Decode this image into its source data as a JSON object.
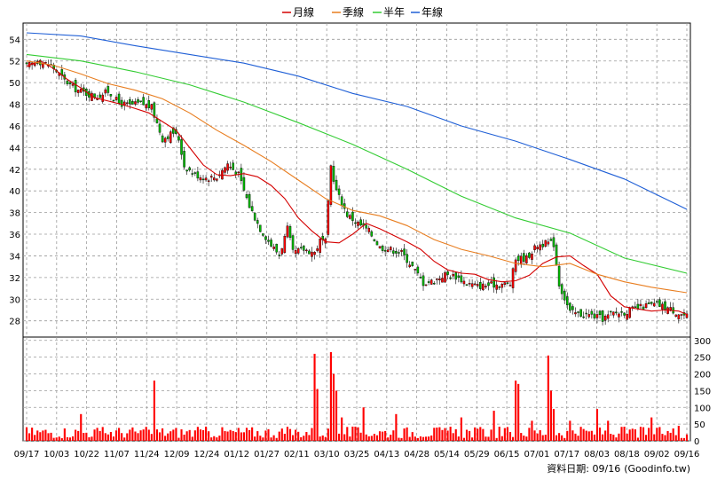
{
  "chart_data": {
    "type": "line",
    "legend": {
      "placement": "top-center",
      "items": [
        {
          "name": "月線",
          "color": "#d40000"
        },
        {
          "name": "季線",
          "color": "#e87d1f"
        },
        {
          "name": "半年",
          "color": "#33cc33"
        },
        {
          "name": "年線",
          "color": "#1f5fd6"
        }
      ]
    },
    "price_axis": {
      "ticks": [
        28,
        30,
        32,
        34,
        36,
        38,
        40,
        42,
        44,
        46,
        48,
        50,
        52,
        54
      ],
      "ylim": [
        26.5,
        55.5
      ],
      "side": "left"
    },
    "volume_axis": {
      "ticks": [
        0,
        50,
        100,
        150,
        200,
        250,
        300
      ],
      "ylim": [
        0,
        310
      ],
      "side": "right"
    },
    "x_ticks": [
      "09/17",
      "10/03",
      "10/22",
      "11/07",
      "11/24",
      "12/09",
      "12/24",
      "01/12",
      "01/27",
      "02/11",
      "03/10",
      "03/25",
      "04/13",
      "04/28",
      "05/14",
      "05/29",
      "06/15",
      "07/01",
      "07/17",
      "08/03",
      "08/18",
      "09/02",
      "09/16"
    ],
    "ma_series": [
      {
        "name": "月線",
        "color": "#d40000",
        "values": [
          [
            0,
            51.5
          ],
          [
            5,
            52
          ],
          [
            10,
            51.3
          ],
          [
            15,
            50.3
          ],
          [
            20,
            49.5
          ],
          [
            25,
            48.6
          ],
          [
            30,
            48.3
          ],
          [
            35,
            48.0
          ],
          [
            40,
            47.6
          ],
          [
            45,
            47.2
          ],
          [
            50,
            46.4
          ],
          [
            55,
            45.6
          ],
          [
            60,
            44.0
          ],
          [
            65,
            42.4
          ],
          [
            70,
            41.5
          ],
          [
            75,
            41.4
          ],
          [
            80,
            41.6
          ],
          [
            85,
            41.3
          ],
          [
            90,
            40.5
          ],
          [
            95,
            39.3
          ],
          [
            100,
            37.5
          ],
          [
            105,
            36.3
          ],
          [
            110,
            35.3
          ],
          [
            115,
            35.2
          ],
          [
            120,
            36.0
          ],
          [
            125,
            37.0
          ],
          [
            130,
            36.5
          ],
          [
            135,
            35.9
          ],
          [
            140,
            35.3
          ],
          [
            145,
            34.6
          ],
          [
            150,
            33.5
          ],
          [
            155,
            32.7
          ],
          [
            160,
            32.4
          ],
          [
            165,
            32.3
          ],
          [
            170,
            31.8
          ],
          [
            175,
            31.6
          ],
          [
            180,
            31.7
          ],
          [
            185,
            32.2
          ],
          [
            190,
            33.3
          ],
          [
            195,
            33.9
          ],
          [
            200,
            34.0
          ],
          [
            205,
            33.1
          ],
          [
            210,
            32.3
          ],
          [
            215,
            30.3
          ],
          [
            220,
            29.3
          ],
          [
            225,
            29.1
          ],
          [
            230,
            28.9
          ],
          [
            235,
            29.0
          ],
          [
            240,
            28.9
          ],
          [
            243,
            28.6
          ]
        ]
      },
      {
        "name": "季線",
        "color": "#e87d1f",
        "values": [
          [
            0,
            52
          ],
          [
            10,
            51.6
          ],
          [
            20,
            50.8
          ],
          [
            30,
            49.9
          ],
          [
            40,
            49.3
          ],
          [
            50,
            48.5
          ],
          [
            60,
            47.2
          ],
          [
            70,
            45.6
          ],
          [
            80,
            44.2
          ],
          [
            90,
            42.7
          ],
          [
            100,
            41.0
          ],
          [
            110,
            39.3
          ],
          [
            120,
            38.2
          ],
          [
            130,
            37.7
          ],
          [
            140,
            36.8
          ],
          [
            150,
            35.5
          ],
          [
            160,
            34.6
          ],
          [
            170,
            34.0
          ],
          [
            180,
            33.3
          ],
          [
            190,
            33.0
          ],
          [
            200,
            33.3
          ],
          [
            210,
            32.3
          ],
          [
            220,
            31.6
          ],
          [
            230,
            31.1
          ],
          [
            243,
            30.6
          ]
        ]
      },
      {
        "name": "半年",
        "color": "#33cc33",
        "values": [
          [
            0,
            52.6
          ],
          [
            20,
            52
          ],
          [
            40,
            51
          ],
          [
            60,
            49.8
          ],
          [
            80,
            48.2
          ],
          [
            100,
            46.3
          ],
          [
            120,
            44.3
          ],
          [
            140,
            42
          ],
          [
            160,
            39.5
          ],
          [
            180,
            37.5
          ],
          [
            200,
            36.1
          ],
          [
            220,
            33.8
          ],
          [
            243,
            32.4
          ]
        ]
      },
      {
        "name": "年線",
        "color": "#1f5fd6",
        "values": [
          [
            0,
            54.6
          ],
          [
            20,
            54.3
          ],
          [
            40,
            53.4
          ],
          [
            60,
            52.6
          ],
          [
            80,
            51.8
          ],
          [
            100,
            50.6
          ],
          [
            120,
            49.0
          ],
          [
            140,
            47.8
          ],
          [
            160,
            46.0
          ],
          [
            180,
            44.6
          ],
          [
            200,
            42.9
          ],
          [
            220,
            41.1
          ],
          [
            243,
            38.3
          ]
        ]
      }
    ],
    "candle_count": 244,
    "close_path": [
      [
        0,
        51.5
      ],
      [
        4,
        52
      ],
      [
        9,
        51.6
      ],
      [
        14,
        50.2
      ],
      [
        18,
        49.4
      ],
      [
        22,
        49
      ],
      [
        26,
        48.7
      ],
      [
        30,
        49.2
      ],
      [
        34,
        48.1
      ],
      [
        38,
        47.9
      ],
      [
        42,
        48.1
      ],
      [
        46,
        47.7
      ],
      [
        50,
        44.8
      ],
      [
        54,
        45.4
      ],
      [
        56,
        44.8
      ],
      [
        58,
        42.3
      ],
      [
        62,
        41.5
      ],
      [
        66,
        41.2
      ],
      [
        70,
        41.3
      ],
      [
        74,
        42.5
      ],
      [
        78,
        41.5
      ],
      [
        82,
        38.6
      ],
      [
        86,
        36.5
      ],
      [
        90,
        35
      ],
      [
        93,
        34.1
      ],
      [
        96,
        36.5
      ],
      [
        98,
        34.3
      ],
      [
        102,
        34.6
      ],
      [
        106,
        34.3
      ],
      [
        108,
        35.4
      ],
      [
        110,
        35.3
      ],
      [
        112,
        42.3
      ],
      [
        114,
        40
      ],
      [
        118,
        37.8
      ],
      [
        122,
        37
      ],
      [
        126,
        36.3
      ],
      [
        130,
        34.8
      ],
      [
        134,
        34.6
      ],
      [
        138,
        34.3
      ],
      [
        142,
        33
      ],
      [
        146,
        31.5
      ],
      [
        150,
        31.7
      ],
      [
        154,
        32.3
      ],
      [
        158,
        32.1
      ],
      [
        162,
        31.5
      ],
      [
        166,
        31.2
      ],
      [
        170,
        31.3
      ],
      [
        174,
        31.4
      ],
      [
        178,
        31.4
      ],
      [
        180,
        33.7
      ],
      [
        184,
        33.8
      ],
      [
        188,
        35
      ],
      [
        192,
        35.2
      ],
      [
        194,
        35.1
      ],
      [
        196,
        31.4
      ],
      [
        200,
        28.8
      ],
      [
        204,
        28.6
      ],
      [
        208,
        28.5
      ],
      [
        212,
        28.2
      ],
      [
        216,
        28.7
      ],
      [
        220,
        28.8
      ],
      [
        224,
        29.1
      ],
      [
        228,
        29.4
      ],
      [
        232,
        29.5
      ],
      [
        236,
        29.2
      ],
      [
        240,
        28.7
      ],
      [
        243,
        28.4
      ]
    ],
    "volume_spikes": {
      "20": 80,
      "47": 180,
      "106": 260,
      "107": 155,
      "112": 265,
      "113": 200,
      "114": 150,
      "116": 70,
      "124": 100,
      "136": 80,
      "160": 70,
      "172": 90,
      "180": 180,
      "181": 170,
      "186": 60,
      "192": 255,
      "193": 150,
      "194": 95,
      "200": 60,
      "210": 95,
      "214": 60,
      "230": 70,
      "240": 45
    }
  },
  "footer": {
    "date_label": "資料日期: 09/16",
    "source": "(Goodinfo.tw)"
  }
}
